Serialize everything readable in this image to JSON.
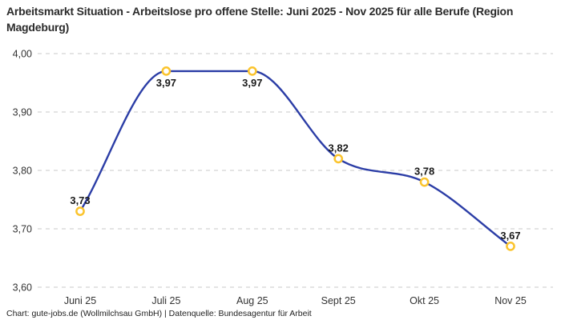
{
  "title": "Arbeitsmarkt Situation - Arbeitslose pro offene Stelle: Juni 2025 - Nov 2025 für alle Berufe (Region Magdeburg)",
  "footer": "Chart: gute-jobs.de (Wollmilchsau GmbH) | Datenquelle: Bundesagentur für Arbeit",
  "colors": {
    "line": "#2b3da6",
    "marker_stroke": "#fbc42d",
    "marker_fill": "#ffffff",
    "grid": "#c9c9c9",
    "title_text": "#2b2b2b",
    "axis_text": "#333333",
    "label_text": "#1a1a1a",
    "background": "#ffffff"
  },
  "chart_data": {
    "type": "line",
    "title": "Arbeitsmarkt Situation - Arbeitslose pro offene Stelle: Juni 2025 - Nov 2025 für alle Berufe (Region Magdeburg)",
    "categories": [
      "Juni 25",
      "Juli 25",
      "Aug 25",
      "Sept 25",
      "Okt 25",
      "Nov 25"
    ],
    "values": [
      3.73,
      3.97,
      3.97,
      3.82,
      3.78,
      3.67
    ],
    "value_labels": [
      "3,73",
      "3,97",
      "3,97",
      "3,82",
      "3,78",
      "3,67"
    ],
    "y_ticks": {
      "values": [
        4.0,
        3.9,
        3.8,
        3.7,
        3.6
      ],
      "labels": [
        "4,00",
        "3,90",
        "3,80",
        "3,70",
        "3,60"
      ]
    },
    "ylim": [
      3.6,
      4.0
    ],
    "xlabel": "",
    "ylabel": "",
    "grid": "horizontal-dashed",
    "legend": "none",
    "curve": "smooth-monotone",
    "decimal_style": "comma"
  }
}
